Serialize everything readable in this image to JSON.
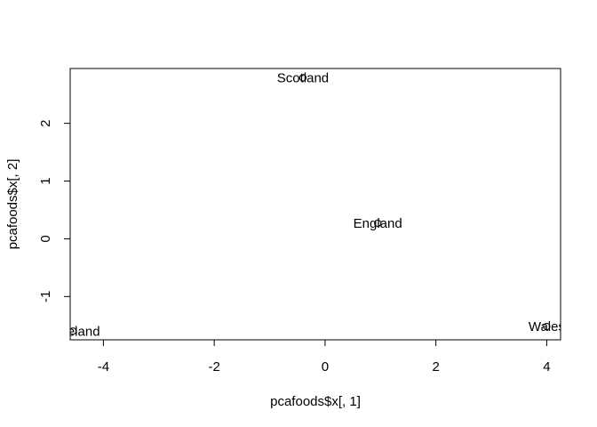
{
  "chart_data": {
    "type": "scatter",
    "title": "",
    "xlabel": "pcafoods$x[, 1]",
    "ylabel": "pcafoods$x[, 2]",
    "xlim": [
      -4.6,
      4.25
    ],
    "ylim": [
      -1.75,
      2.95
    ],
    "grid": false,
    "legend": "none",
    "x_ticks": [
      -4,
      -2,
      0,
      2,
      4
    ],
    "x_tick_labels": [
      "-4",
      "-2",
      "0",
      "2",
      "4"
    ],
    "y_ticks": [
      -1,
      0,
      1,
      2
    ],
    "y_tick_labels": [
      "-1",
      "0",
      "1",
      "2"
    ],
    "points": [
      {
        "label": "England",
        "x": 0.95,
        "y": 0.27,
        "marker": "o"
      },
      {
        "label": "Wales",
        "x": 4.0,
        "y": -1.52,
        "marker": "o"
      },
      {
        "label": "Scotland",
        "x": -0.4,
        "y": 2.79,
        "marker": "o"
      },
      {
        "label": "N.Ireland",
        "x": -4.55,
        "y": -1.6,
        "marker": "o"
      }
    ],
    "colors": {
      "points": "#000000",
      "text": "#000000",
      "axes": "#000000"
    }
  }
}
